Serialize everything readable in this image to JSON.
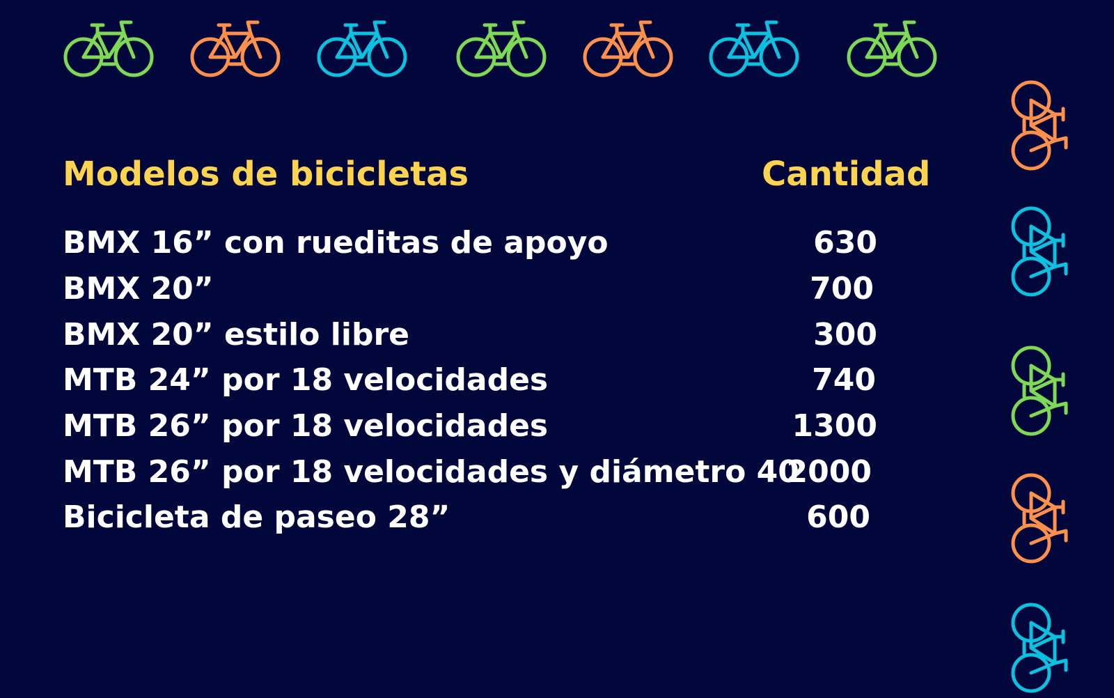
{
  "header": {
    "model_label": "Modelos de bicicletas",
    "qty_label": "Cantidad"
  },
  "rows": [
    {
      "model": "BMX 16” con rueditas de apoyo",
      "qty": "630"
    },
    {
      "model": "BMX 20”",
      "qty": "700"
    },
    {
      "model": "BMX 20” estilo libre",
      "qty": "300"
    },
    {
      "model": "MTB 24” por 18 velocidades",
      "qty": "740"
    },
    {
      "model": "MTB 26” por 18 velocidades",
      "qty": "1300"
    },
    {
      "model": "MTB 26” por 18 velocidades y diámetro 40",
      "qty": "2000"
    },
    {
      "model": "Bicicleta de paseo 28”",
      "qty": "600"
    }
  ],
  "colors": {
    "background": "#02073b",
    "header": "#fdd34f",
    "text": "#ffffff",
    "green": "#7ed957",
    "orange": "#ff914d",
    "teal": "#0cc0df"
  },
  "icons": {
    "bike": "bicycle-icon"
  }
}
